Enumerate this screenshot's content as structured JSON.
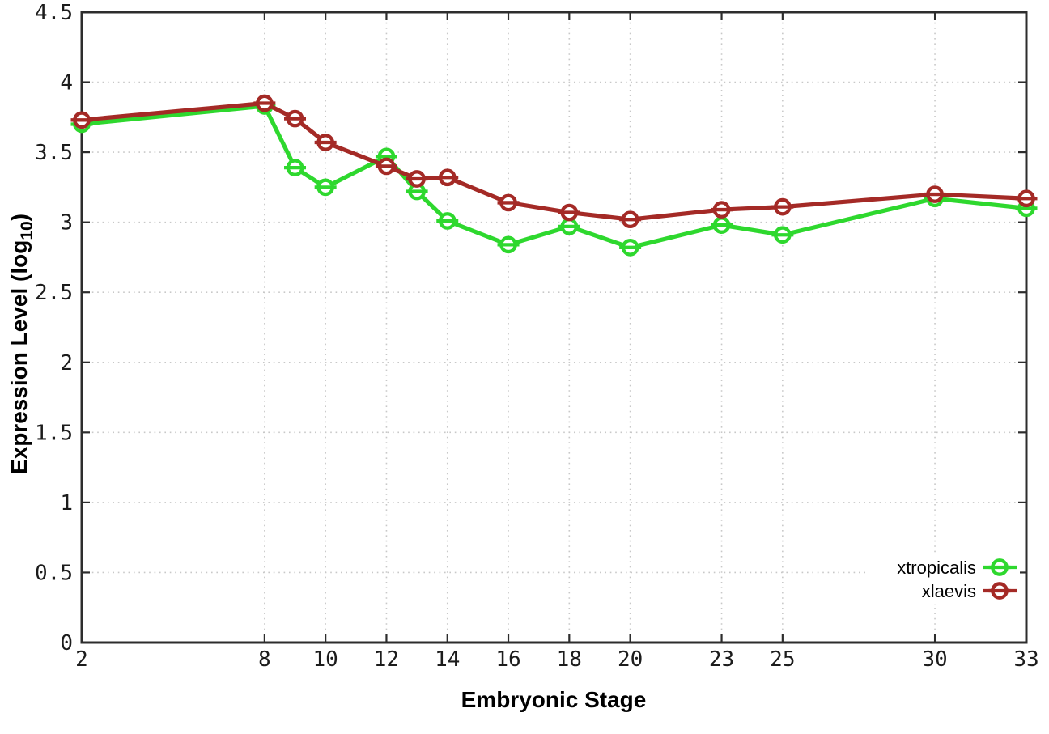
{
  "chart_data": {
    "type": "line",
    "title": "",
    "xlabel": "Embryonic Stage",
    "ylabel": "Expression Level (log10)",
    "ylabel_pre": "Expression Level (log",
    "ylabel_sub": "10",
    "ylabel_post": ")",
    "x": [
      2,
      8,
      9,
      10,
      12,
      13,
      14,
      16,
      18,
      20,
      23,
      25,
      30,
      33
    ],
    "series": [
      {
        "name": "xtropicalis",
        "color": "#2ed82e",
        "values": [
          3.7,
          3.83,
          3.39,
          3.25,
          3.47,
          3.22,
          3.01,
          2.84,
          2.97,
          2.82,
          2.98,
          2.91,
          3.17,
          3.1
        ]
      },
      {
        "name": "xlaevis",
        "color": "#a42a26",
        "values": [
          3.73,
          3.85,
          3.74,
          3.57,
          3.4,
          3.31,
          3.32,
          3.14,
          3.07,
          3.02,
          3.09,
          3.11,
          3.2,
          3.17
        ]
      }
    ],
    "xticks": [
      2,
      8,
      10,
      12,
      14,
      16,
      18,
      20,
      23,
      25,
      30,
      33
    ],
    "yticks": [
      0,
      0.5,
      1,
      1.5,
      2,
      2.5,
      3,
      3.5,
      4,
      4.5
    ],
    "xlim": [
      2,
      33
    ],
    "ylim": [
      0,
      4.5
    ],
    "grid": true,
    "grid_style": "dotted",
    "legend_position": "inside-bottom-right",
    "legend_entries": [
      "xtropicalis",
      "xlaevis"
    ],
    "marker": "open-circle-with-horizontal-dash",
    "colors": {
      "background": "#ffffff",
      "frame": "#2d2d2d",
      "grid": "#c8c8c8",
      "tick_label": "#1c1c1c",
      "marker_fill": "#ffffff"
    }
  }
}
